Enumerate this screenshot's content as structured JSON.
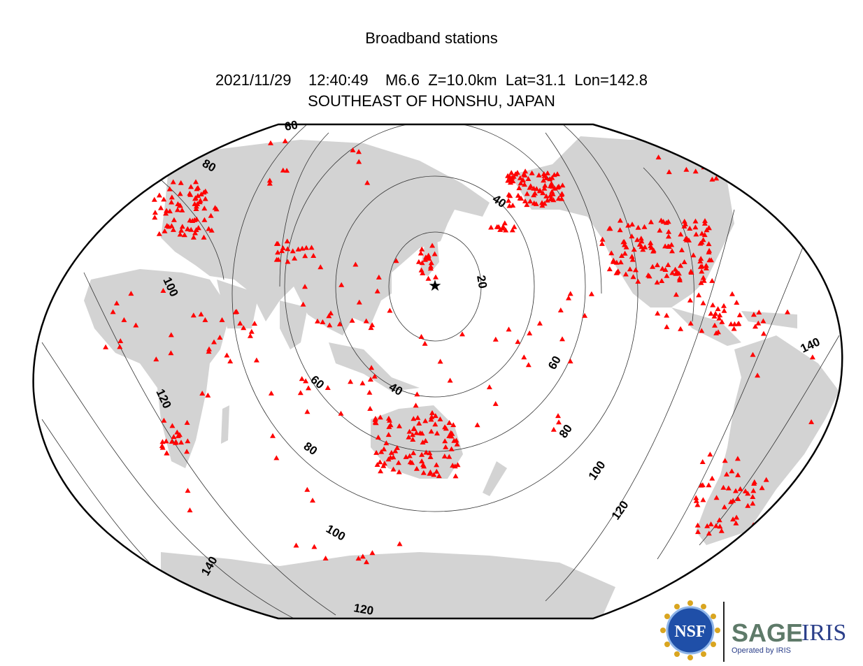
{
  "header": {
    "title": "Broadband stations",
    "event_line": "2021/11/29    12:40:49    M6.6  Z=10.0km  Lat=31.1  Lon=142.8",
    "region": "SOUTHEAST OF HONSHU, JAPAN"
  },
  "event": {
    "date": "2021/11/29",
    "time": "12:40:49",
    "magnitude": "M6.6",
    "depth": "Z=10.0km",
    "lat": 31.1,
    "lon": 142.8,
    "marker": "star-icon"
  },
  "map": {
    "land_color": "#d3d3d3",
    "ocean_color": "#ffffff",
    "station_color": "#ff0000",
    "station_marker": "triangle-icon",
    "contour_labels": [
      "20",
      "40",
      "40",
      "60",
      "60",
      "60",
      "80",
      "80",
      "80",
      "100",
      "100",
      "100",
      "120",
      "120",
      "120",
      "140",
      "140"
    ]
  },
  "logo": {
    "nsf_label": "NSF",
    "sage_label": "SAGE",
    "iris_label": "IRIS",
    "operated_label": "Operated by IRIS"
  }
}
